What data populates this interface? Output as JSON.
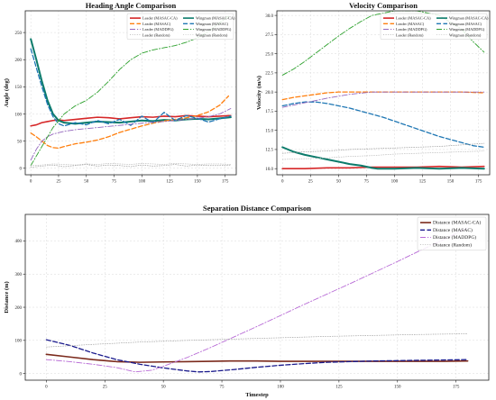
{
  "chart_data": [
    {
      "type": "line",
      "title": "Heading Angle Comparison",
      "xlabel": "",
      "ylabel": "Angle (deg)",
      "xlim": [
        -5,
        185
      ],
      "ylim": [
        -12,
        290
      ],
      "xticks": [
        0,
        25,
        50,
        75,
        100,
        125,
        150,
        175
      ],
      "yticks": [
        0,
        50,
        100,
        150,
        200,
        250
      ],
      "grid": true,
      "legend_position": "top-right",
      "series": [
        {
          "name": "Leader (MASAC-CA)",
          "color": "#d62728",
          "style": "solid",
          "width": 1.6,
          "x": [
            0,
            5,
            10,
            15,
            20,
            25,
            30,
            40,
            50,
            60,
            70,
            80,
            90,
            100,
            110,
            120,
            130,
            140,
            150,
            160,
            170,
            180
          ],
          "values": [
            78,
            80,
            84,
            86,
            88,
            89,
            88,
            90,
            92,
            94,
            93,
            91,
            93,
            95,
            94,
            96,
            95,
            97,
            96,
            95,
            96,
            97
          ]
        },
        {
          "name": "Wingman (MASAC-CA)",
          "color": "#0b7b6b",
          "style": "solid",
          "width": 2.0,
          "x": [
            0,
            5,
            10,
            15,
            20,
            25,
            30,
            40,
            50,
            60,
            70,
            80,
            90,
            100,
            110,
            120,
            130,
            140,
            150,
            160,
            170,
            180
          ],
          "values": [
            238,
            200,
            160,
            125,
            100,
            88,
            84,
            82,
            84,
            86,
            85,
            84,
            86,
            88,
            87,
            89,
            88,
            90,
            91,
            90,
            92,
            94
          ]
        },
        {
          "name": "Leader (MASAC)",
          "color": "#ff7f0e",
          "style": "dashed",
          "width": 1.3,
          "x": [
            0,
            5,
            10,
            15,
            20,
            25,
            30,
            40,
            50,
            60,
            70,
            80,
            90,
            100,
            110,
            120,
            130,
            140,
            150,
            160,
            170,
            178
          ],
          "values": [
            65,
            58,
            50,
            42,
            38,
            37,
            40,
            45,
            48,
            52,
            58,
            66,
            72,
            78,
            83,
            87,
            90,
            93,
            97,
            104,
            116,
            133
          ]
        },
        {
          "name": "Wingman (MASAC)",
          "color": "#1f77b4",
          "style": "dashed",
          "width": 1.3,
          "x": [
            0,
            5,
            10,
            15,
            20,
            25,
            30,
            40,
            50,
            60,
            70,
            80,
            90,
            100,
            110,
            120,
            130,
            140,
            150,
            160,
            170,
            180
          ],
          "values": [
            220,
            185,
            150,
            118,
            95,
            82,
            78,
            84,
            80,
            88,
            82,
            90,
            79,
            96,
            84,
            103,
            88,
            97,
            92,
            85,
            91,
            96
          ]
        },
        {
          "name": "Leader (MADDPG)",
          "color": "#9467bd",
          "style": "dashdot",
          "width": 0.9,
          "x": [
            0,
            5,
            10,
            15,
            20,
            30,
            40,
            50,
            60,
            70,
            80,
            90,
            100,
            110,
            120,
            130,
            140,
            150,
            160,
            170,
            180
          ],
          "values": [
            15,
            35,
            50,
            58,
            63,
            68,
            71,
            73,
            75,
            77,
            79,
            81,
            83,
            85,
            86,
            88,
            90,
            92,
            95,
            100,
            110
          ]
        },
        {
          "name": "Wingman (MADDPG)",
          "color": "#2ca02c",
          "style": "dashdot",
          "width": 0.9,
          "x": [
            0,
            10,
            20,
            30,
            40,
            50,
            60,
            70,
            80,
            90,
            100,
            110,
            120,
            130,
            140,
            150,
            160,
            170,
            178
          ],
          "values": [
            5,
            40,
            75,
            100,
            115,
            125,
            140,
            160,
            182,
            200,
            212,
            218,
            222,
            226,
            232,
            240,
            252,
            268,
            280
          ]
        },
        {
          "name": "Leader (Random)",
          "color": "#9a9a9a",
          "style": "dotted",
          "width": 0.7,
          "x": [
            0,
            10,
            20,
            30,
            40,
            50,
            60,
            70,
            80,
            90,
            100,
            110,
            120,
            130,
            140,
            150,
            160,
            170,
            180
          ],
          "values": [
            2,
            4,
            6,
            3,
            5,
            7,
            4,
            6,
            5,
            3,
            6,
            4,
            5,
            7,
            4,
            6,
            5,
            5,
            6
          ]
        },
        {
          "name": "Wingman (Random)",
          "color": "#bcbcbc",
          "style": "dotted",
          "width": 0.7,
          "x": [
            0,
            10,
            20,
            30,
            40,
            50,
            60,
            70,
            80,
            90,
            100,
            110,
            120,
            130,
            140,
            150,
            160,
            170,
            180
          ],
          "values": [
            5,
            6,
            8,
            7,
            6,
            8,
            7,
            9,
            8,
            7,
            9,
            8,
            7,
            9,
            8,
            7,
            8,
            8,
            7
          ]
        }
      ]
    },
    {
      "type": "line",
      "title": "Velocity Comparison",
      "xlabel": "",
      "ylabel": "Velocity (m/s)",
      "xlim": [
        -5,
        185
      ],
      "ylim": [
        9.2,
        30.6
      ],
      "xticks": [
        0,
        25,
        50,
        75,
        100,
        125,
        150,
        175
      ],
      "yticks": [
        10.0,
        12.5,
        15.0,
        17.5,
        20.0,
        22.5,
        25.0,
        27.5,
        30.0
      ],
      "ytick_labels": [
        "10.0",
        "12.5",
        "15.0",
        "17.5",
        "20.0",
        "22.5",
        "25.0",
        "27.5",
        "30.0"
      ],
      "grid": true,
      "legend_position": "top-right",
      "series": [
        {
          "name": "Leader (MASAC-CA)",
          "color": "#d62728",
          "style": "solid",
          "width": 1.6,
          "x": [
            0,
            20,
            40,
            60,
            80,
            100,
            120,
            140,
            160,
            180
          ],
          "values": [
            10.0,
            10.0,
            10.1,
            10.1,
            10.2,
            10.2,
            10.2,
            10.3,
            10.2,
            10.3
          ]
        },
        {
          "name": "Wingman (MASAC-CA)",
          "color": "#0b7b6b",
          "style": "solid",
          "width": 2.0,
          "x": [
            0,
            10,
            20,
            30,
            40,
            50,
            60,
            70,
            80,
            85,
            100,
            120,
            140,
            160,
            180
          ],
          "values": [
            12.8,
            12.2,
            11.8,
            11.5,
            11.2,
            10.9,
            10.6,
            10.4,
            10.1,
            10.0,
            10.0,
            10.1,
            10.0,
            10.1,
            10.0
          ]
        },
        {
          "name": "Leader (MASAC)",
          "color": "#ff7f0e",
          "style": "dashed",
          "width": 1.3,
          "x": [
            0,
            10,
            20,
            30,
            40,
            50,
            60,
            80,
            100,
            120,
            140,
            160,
            180
          ],
          "values": [
            19.0,
            19.3,
            19.5,
            19.7,
            19.9,
            20.0,
            20.0,
            20.0,
            20.0,
            20.0,
            20.0,
            20.0,
            19.9
          ]
        },
        {
          "name": "Wingman (MASAC)",
          "color": "#1f77b4",
          "style": "dashed",
          "width": 1.3,
          "x": [
            0,
            10,
            20,
            30,
            40,
            50,
            60,
            70,
            80,
            90,
            100,
            110,
            120,
            130,
            140,
            150,
            160,
            170,
            180
          ],
          "values": [
            18.2,
            18.5,
            18.7,
            18.7,
            18.5,
            18.2,
            17.9,
            17.5,
            17.1,
            16.7,
            16.2,
            15.7,
            15.2,
            14.7,
            14.2,
            13.8,
            13.4,
            13.0,
            12.8
          ]
        },
        {
          "name": "Leader (MADDPG)",
          "color": "#9467bd",
          "style": "dashdot",
          "width": 0.9,
          "x": [
            0,
            20,
            40,
            60,
            80,
            100,
            120,
            140,
            160,
            180
          ],
          "values": [
            18.0,
            18.6,
            19.2,
            19.7,
            20.0,
            20.0,
            20.0,
            20.0,
            20.0,
            20.0
          ]
        },
        {
          "name": "Wingman (MADDPG)",
          "color": "#2ca02c",
          "style": "dashdot",
          "width": 0.9,
          "x": [
            0,
            10,
            20,
            30,
            40,
            50,
            60,
            70,
            80,
            100,
            120,
            140,
            160,
            170,
            180
          ],
          "values": [
            22.2,
            23.0,
            24.0,
            25.1,
            26.2,
            27.3,
            28.3,
            29.2,
            30.0,
            30.6,
            30.6,
            30.0,
            28.2,
            26.6,
            25.2
          ]
        },
        {
          "name": "Leader (Random)",
          "color": "#9a9a9a",
          "style": "dotted",
          "width": 0.7,
          "x": [
            0,
            20,
            40,
            60,
            80,
            100,
            120,
            140,
            160,
            180
          ],
          "values": [
            12.0,
            12.2,
            12.3,
            12.5,
            12.6,
            12.7,
            12.8,
            12.9,
            13.1,
            13.3
          ]
        },
        {
          "name": "Wingman (Random)",
          "color": "#bcbcbc",
          "style": "dotted",
          "width": 0.7,
          "x": [
            0,
            20,
            40,
            60,
            80,
            100,
            120,
            140,
            160,
            180
          ],
          "values": [
            11.2,
            11.3,
            11.4,
            11.6,
            11.7,
            11.9,
            12.0,
            12.1,
            12.2,
            12.3
          ]
        }
      ]
    },
    {
      "type": "line",
      "title": "Separation Distance Comparison",
      "xlabel": "Timestep",
      "ylabel": "Distance (m)",
      "xlim": [
        -9,
        189
      ],
      "ylim": [
        -20,
        480
      ],
      "xticks": [
        0,
        25,
        50,
        75,
        100,
        125,
        150,
        175
      ],
      "yticks": [
        0,
        100,
        200,
        300,
        400
      ],
      "grid": true,
      "legend_position": "top-right",
      "series": [
        {
          "name": "Distance (MASAC-CA)",
          "color": "#7b2a1c",
          "style": "solid",
          "width": 1.6,
          "x": [
            0,
            10,
            20,
            30,
            40,
            50,
            60,
            70,
            80,
            90,
            100,
            110,
            120,
            130,
            140,
            150,
            160,
            170,
            180
          ],
          "values": [
            58,
            50,
            42,
            36,
            34,
            35,
            36,
            37,
            38,
            38,
            37,
            37,
            37,
            37,
            37,
            37,
            37,
            37,
            38
          ]
        },
        {
          "name": "Distance (MASAC)",
          "color": "#1a1a8c",
          "style": "dashed",
          "width": 1.3,
          "x": [
            0,
            10,
            20,
            30,
            40,
            50,
            60,
            65,
            70,
            80,
            90,
            100,
            110,
            120,
            130,
            140,
            150,
            160,
            170,
            180
          ],
          "values": [
            102,
            85,
            62,
            42,
            28,
            17,
            8,
            5,
            6,
            12,
            19,
            25,
            30,
            34,
            36,
            38,
            39,
            40,
            41,
            42
          ]
        },
        {
          "name": "Distance (MADDPG)",
          "color": "#b86bd6",
          "style": "dashdot",
          "width": 0.9,
          "x": [
            0,
            10,
            20,
            30,
            38,
            45,
            50,
            60,
            70,
            80,
            90,
            100,
            110,
            120,
            130,
            140,
            150,
            160,
            170,
            180
          ],
          "values": [
            42,
            36,
            28,
            18,
            5,
            10,
            22,
            48,
            78,
            110,
            142,
            175,
            208,
            240,
            272,
            305,
            338,
            372,
            405,
            440
          ]
        },
        {
          "name": "Distance (Random)",
          "color": "#a0a0a0",
          "style": "dotted",
          "width": 0.7,
          "x": [
            0,
            20,
            40,
            60,
            80,
            100,
            120,
            140,
            160,
            180
          ],
          "values": [
            80,
            88,
            95,
            100,
            104,
            108,
            112,
            115,
            118,
            120
          ]
        }
      ]
    }
  ]
}
